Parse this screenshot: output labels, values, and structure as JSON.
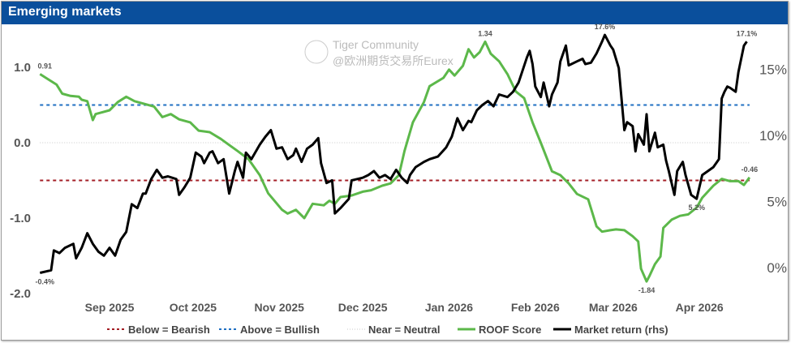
{
  "title": "Emerging markets",
  "watermark": {
    "line1": "Tiger Community",
    "line2": "@欧洲期货交易所Eurex"
  },
  "chart_data": {
    "type": "line",
    "title": "Emerging markets",
    "x_unit": "days since 2025-09-01",
    "xlim": [
      -25,
      230
    ],
    "x_ticks": [
      {
        "day": 0,
        "label": "Sep 2025"
      },
      {
        "day": 30,
        "label": "Oct 2025"
      },
      {
        "day": 61,
        "label": "Nov 2025"
      },
      {
        "day": 91,
        "label": "Dec 2025"
      },
      {
        "day": 122,
        "label": "Jan 2026"
      },
      {
        "day": 153,
        "label": "Feb 2026"
      },
      {
        "day": 181,
        "label": "Mar 2026"
      },
      {
        "day": 212,
        "label": "Apr 2026"
      }
    ],
    "y_left": {
      "ylim": [
        -2.0,
        1.4
      ],
      "ticks": [
        {
          "v": 1.0,
          "label": "1.0"
        },
        {
          "v": 0.0,
          "label": "0.0"
        },
        {
          "v": -1.0,
          "label": "-1.0"
        },
        {
          "v": -2.0,
          "label": "-2.0"
        }
      ]
    },
    "y_right": {
      "ylim": [
        -1,
        18
      ],
      "ticks": [
        {
          "v": 15,
          "label": "15%"
        },
        {
          "v": 10,
          "label": "10%"
        },
        {
          "v": 5,
          "label": "5%"
        },
        {
          "v": 0,
          "label": "0%"
        }
      ]
    },
    "reference_lines": [
      {
        "name": "Below = Bearish",
        "value": -0.5,
        "color": "#a31d24",
        "style": "dashed"
      },
      {
        "name": "Above = Bullish",
        "value": 0.5,
        "color": "#1f6fc2",
        "style": "dashed"
      },
      {
        "name": "Near = Neutral",
        "value": 0.0,
        "color": "#c8c8c8",
        "style": "dotted"
      }
    ],
    "series": [
      {
        "name": "ROOF Score",
        "axis": "left",
        "color": "#5cb84a",
        "points": [
          [
            -25,
            0.91
          ],
          [
            -22,
            0.84
          ],
          [
            -19,
            0.77
          ],
          [
            -17,
            0.65
          ],
          [
            -14,
            0.62
          ],
          [
            -11,
            0.61
          ],
          [
            -10,
            0.57
          ],
          [
            -8,
            0.55
          ],
          [
            -6,
            0.3
          ],
          [
            -5,
            0.38
          ],
          [
            -3,
            0.4
          ],
          [
            0,
            0.43
          ],
          [
            3,
            0.54
          ],
          [
            6,
            0.61
          ],
          [
            9,
            0.55
          ],
          [
            13,
            0.51
          ],
          [
            16,
            0.48
          ],
          [
            19,
            0.34
          ],
          [
            22,
            0.38
          ],
          [
            25,
            0.31
          ],
          [
            29,
            0.27
          ],
          [
            32,
            0.16
          ],
          [
            36,
            0.14
          ],
          [
            40,
            0.05
          ],
          [
            43,
            -0.03
          ],
          [
            46,
            -0.11
          ],
          [
            50,
            -0.22
          ],
          [
            54,
            -0.43
          ],
          [
            57,
            -0.67
          ],
          [
            62,
            -0.89
          ],
          [
            64,
            -0.94
          ],
          [
            67,
            -0.89
          ],
          [
            70,
            -1.0
          ],
          [
            73,
            -0.81
          ],
          [
            77,
            -0.83
          ],
          [
            79,
            -0.77
          ],
          [
            81,
            -0.81
          ],
          [
            83,
            -0.72
          ],
          [
            87,
            -0.7
          ],
          [
            91,
            -0.65
          ],
          [
            94,
            -0.63
          ],
          [
            98,
            -0.57
          ],
          [
            101,
            -0.54
          ],
          [
            104,
            -0.43
          ],
          [
            106,
            -0.11
          ],
          [
            109,
            0.27
          ],
          [
            113,
            0.54
          ],
          [
            115,
            0.75
          ],
          [
            120,
            0.86
          ],
          [
            122,
            0.97
          ],
          [
            124,
            0.89
          ],
          [
            127,
            1.02
          ],
          [
            129,
            1.24
          ],
          [
            131,
            1.13
          ],
          [
            133,
            1.2
          ],
          [
            135,
            1.34
          ],
          [
            137,
            1.18
          ],
          [
            140,
            1.08
          ],
          [
            143,
            0.91
          ],
          [
            146,
            0.68
          ],
          [
            149,
            0.59
          ],
          [
            152,
            0.27
          ],
          [
            155,
            0.0
          ],
          [
            159,
            -0.38
          ],
          [
            162,
            -0.43
          ],
          [
            165,
            -0.54
          ],
          [
            168,
            -0.68
          ],
          [
            172,
            -0.75
          ],
          [
            175,
            -1.11
          ],
          [
            177,
            -1.18
          ],
          [
            180,
            -1.16
          ],
          [
            182,
            -1.15
          ],
          [
            185,
            -1.16
          ],
          [
            188,
            -1.24
          ],
          [
            190,
            -1.31
          ],
          [
            191,
            -1.67
          ],
          [
            193,
            -1.84
          ],
          [
            194,
            -1.77
          ],
          [
            196,
            -1.61
          ],
          [
            198,
            -1.51
          ],
          [
            199,
            -1.13
          ],
          [
            202,
            -1.02
          ],
          [
            205,
            -0.97
          ],
          [
            208,
            -0.95
          ],
          [
            211,
            -0.86
          ],
          [
            213,
            -0.73
          ],
          [
            215,
            -0.65
          ],
          [
            217,
            -0.57
          ],
          [
            220,
            -0.48
          ],
          [
            223,
            -0.51
          ],
          [
            226,
            -0.51
          ],
          [
            228,
            -0.56
          ],
          [
            230,
            -0.46
          ]
        ]
      },
      {
        "name": "Market return (rhs)",
        "axis": "right",
        "color": "#000000",
        "points": [
          [
            -25,
            -0.4
          ],
          [
            -21,
            -0.2
          ],
          [
            -20,
            1.3
          ],
          [
            -18,
            1.1
          ],
          [
            -16,
            1.5
          ],
          [
            -13,
            1.8
          ],
          [
            -12,
            0.7
          ],
          [
            -10,
            1.5
          ],
          [
            -8,
            2.6
          ],
          [
            -6,
            1.8
          ],
          [
            -4,
            1.2
          ],
          [
            -2,
            0.9
          ],
          [
            0,
            1.5
          ],
          [
            2,
            0.9
          ],
          [
            4,
            2.1
          ],
          [
            6,
            2.7
          ],
          [
            8,
            4.8
          ],
          [
            10,
            4.5
          ],
          [
            12,
            5.6
          ],
          [
            13,
            5.6
          ],
          [
            15,
            6.7
          ],
          [
            17,
            7.4
          ],
          [
            19,
            6.8
          ],
          [
            21,
            6.9
          ],
          [
            24,
            6.7
          ],
          [
            25,
            5.5
          ],
          [
            27,
            6.1
          ],
          [
            29,
            6.8
          ],
          [
            31,
            8.7
          ],
          [
            33,
            8.4
          ],
          [
            34,
            7.9
          ],
          [
            36,
            8.7
          ],
          [
            37,
            8.8
          ],
          [
            39,
            7.9
          ],
          [
            41,
            8.2
          ],
          [
            43,
            5.6
          ],
          [
            45,
            7.3
          ],
          [
            46,
            8.0
          ],
          [
            48,
            6.8
          ],
          [
            49,
            8.7
          ],
          [
            51,
            8.2
          ],
          [
            54,
            9.3
          ],
          [
            56,
            9.9
          ],
          [
            58,
            10.4
          ],
          [
            60,
            9.0
          ],
          [
            62,
            9.1
          ],
          [
            64,
            8.2
          ],
          [
            66,
            8.5
          ],
          [
            67,
            9.0
          ],
          [
            69,
            8.0
          ],
          [
            71,
            9.0
          ],
          [
            73,
            9.3
          ],
          [
            75,
            9.8
          ],
          [
            76,
            7.9
          ],
          [
            78,
            6.4
          ],
          [
            80,
            6.6
          ],
          [
            81,
            4.1
          ],
          [
            83,
            4.5
          ],
          [
            86,
            5.2
          ],
          [
            87,
            6.6
          ],
          [
            89,
            6.7
          ],
          [
            91,
            6.8
          ],
          [
            93,
            7.0
          ],
          [
            95,
            7.3
          ],
          [
            97,
            6.8
          ],
          [
            99,
            7.0
          ],
          [
            101,
            6.7
          ],
          [
            103,
            7.4
          ],
          [
            105,
            6.8
          ],
          [
            107,
            6.4
          ],
          [
            108,
            7.0
          ],
          [
            110,
            7.6
          ],
          [
            113,
            8.0
          ],
          [
            115,
            8.2
          ],
          [
            118,
            8.4
          ],
          [
            121,
            9.1
          ],
          [
            123,
            9.9
          ],
          [
            125,
            11.3
          ],
          [
            127,
            10.4
          ],
          [
            129,
            11.1
          ],
          [
            130,
            11.0
          ],
          [
            132,
            11.9
          ],
          [
            134,
            12.3
          ],
          [
            136,
            12.6
          ],
          [
            138,
            12.2
          ],
          [
            140,
            13.1
          ],
          [
            143,
            12.9
          ],
          [
            145,
            13.3
          ],
          [
            147,
            14.0
          ],
          [
            150,
            15.9
          ],
          [
            151,
            16.4
          ],
          [
            152,
            15.4
          ],
          [
            153,
            13.7
          ],
          [
            155,
            12.9
          ],
          [
            156,
            14.0
          ],
          [
            158,
            12.2
          ],
          [
            159,
            13.1
          ],
          [
            161,
            14.0
          ],
          [
            162,
            15.6
          ],
          [
            164,
            16.8
          ],
          [
            165,
            15.3
          ],
          [
            166,
            15.4
          ],
          [
            168,
            15.6
          ],
          [
            170,
            15.8
          ],
          [
            171,
            15.4
          ],
          [
            173,
            15.5
          ],
          [
            175,
            16.2
          ],
          [
            177,
            17.1
          ],
          [
            178,
            17.6
          ],
          [
            180,
            16.8
          ],
          [
            181,
            16.5
          ],
          [
            183,
            15.1
          ],
          [
            185,
            10.4
          ],
          [
            186,
            11.0
          ],
          [
            188,
            10.7
          ],
          [
            189,
            8.8
          ],
          [
            190,
            10.1
          ],
          [
            192,
            9.3
          ],
          [
            193,
            11.6
          ],
          [
            194,
            8.8
          ],
          [
            196,
            10.2
          ],
          [
            197,
            9.1
          ],
          [
            199,
            9.3
          ],
          [
            200,
            8.1
          ],
          [
            201,
            7.3
          ],
          [
            203,
            5.5
          ],
          [
            204,
            7.3
          ],
          [
            206,
            8.0
          ],
          [
            207,
            7.0
          ],
          [
            209,
            5.5
          ],
          [
            211,
            5.2
          ],
          [
            213,
            7.0
          ],
          [
            215,
            7.3
          ],
          [
            217,
            7.6
          ],
          [
            219,
            8.2
          ],
          [
            220,
            12.8
          ],
          [
            221,
            13.3
          ],
          [
            222,
            13.7
          ],
          [
            223,
            13.6
          ],
          [
            225,
            13.3
          ],
          [
            226,
            14.8
          ],
          [
            228,
            16.8
          ],
          [
            229,
            17.1
          ]
        ]
      }
    ],
    "annotations": [
      {
        "series": 0,
        "day": -25,
        "text": "0.91",
        "pos": "above"
      },
      {
        "series": 0,
        "day": 135,
        "text": "1.34",
        "pos": "above"
      },
      {
        "series": 0,
        "day": 193,
        "text": "-1.84",
        "pos": "below"
      },
      {
        "series": 0,
        "day": 230,
        "text": "-0.46",
        "pos": "above"
      },
      {
        "series": 1,
        "day": -25,
        "text": "-0.4%",
        "pos": "below"
      },
      {
        "series": 1,
        "day": 178,
        "text": "17.6%",
        "pos": "above"
      },
      {
        "series": 1,
        "day": 229,
        "text": "17.1%",
        "pos": "above"
      },
      {
        "series": 1,
        "day": 211,
        "text": "5.2%",
        "pos": "below"
      }
    ],
    "legend": {
      "placement": "bottom",
      "entries": [
        "Below = Bearish",
        "Above = Bullish",
        "Near = Neutral",
        "ROOF Score",
        "Market return (rhs)"
      ]
    },
    "grid": false
  }
}
